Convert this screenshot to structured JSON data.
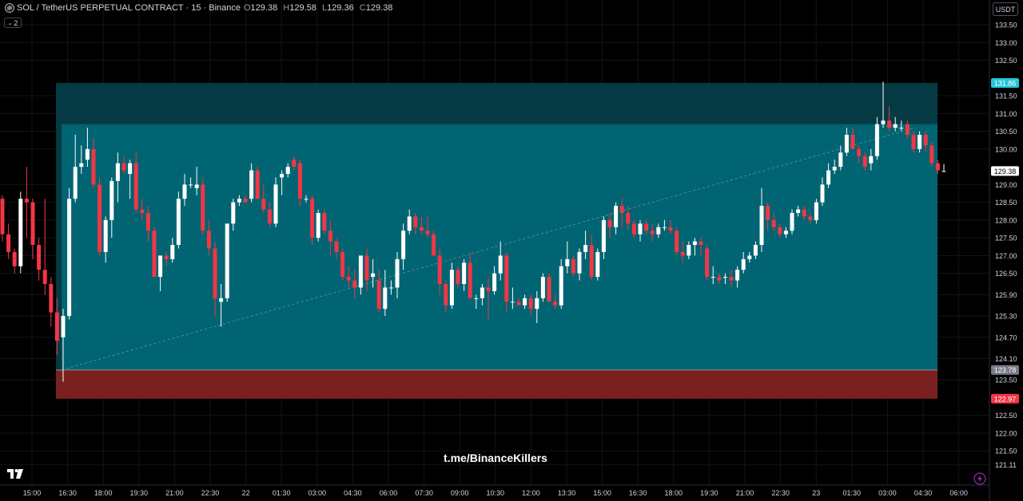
{
  "header": {
    "symbol": "SOL / TetherUS PERPETUAL CONTRACT · 15 · Binance",
    "o_label": "O",
    "o_value": "129.38",
    "h_label": "H",
    "h_value": "129.58",
    "l_label": "L",
    "l_value": "129.36",
    "c_label": "C",
    "c_value": "129.38",
    "indicator_count": "2"
  },
  "currency": "USDT",
  "watermark": "t.me/BinanceKillers",
  "colors": {
    "background": "#000000",
    "up": "#ffffff",
    "down": "#f23645",
    "target_zone": "#006472",
    "upper_zone": "#053a44",
    "stop_zone": "#7a211f",
    "grid": "#141414"
  },
  "icons": [
    "binance-coin-icon",
    "chevron-down-icon",
    "tradingview-logo-icon",
    "lightning-icon"
  ],
  "chart_data": {
    "type": "candlestick",
    "title": "SOL / TetherUS PERPETUAL CONTRACT · 15 · Binance",
    "interval": "15m",
    "ylim": [
      121.11,
      134.0
    ],
    "y_ticks": [
      "133.50",
      "133.00",
      "132.50",
      "131.50",
      "131.00",
      "130.50",
      "130.00",
      "129.00",
      "128.50",
      "128.00",
      "127.50",
      "127.00",
      "126.50",
      "125.90",
      "125.30",
      "124.70",
      "124.10",
      "123.50",
      "122.50",
      "122.00",
      "121.50",
      "121.11"
    ],
    "x_ticks": [
      "15:00",
      "16:30",
      "18:00",
      "19:30",
      "21:00",
      "22:30",
      "22",
      "01:30",
      "03:00",
      "04:30",
      "06:00",
      "07:30",
      "09:00",
      "10:30",
      "12:00",
      "13:30",
      "15:00",
      "16:30",
      "18:00",
      "19:30",
      "21:00",
      "22:30",
      "23",
      "01:30",
      "03:00",
      "04:30",
      "06:00"
    ],
    "price_labels": [
      {
        "value": "131.86",
        "color": "#26c6da"
      },
      {
        "value": "129.38",
        "color": "#ffffff"
      },
      {
        "value": "123.78",
        "color": "#787b86"
      },
      {
        "value": "122.97",
        "color": "#f23645"
      }
    ],
    "position_tool": {
      "type": "long",
      "entry": 123.78,
      "target": 131.86,
      "stop": 122.97,
      "inner_top": 130.7
    },
    "candles": [
      [
        128.6,
        128.7,
        127.4,
        127.6
      ],
      [
        127.6,
        127.9,
        126.9,
        127.1
      ],
      [
        127.1,
        127.2,
        126.5,
        126.7
      ],
      [
        126.7,
        128.8,
        126.5,
        128.6
      ],
      [
        128.6,
        129.5,
        127.5,
        128.5
      ],
      [
        128.5,
        128.6,
        126.9,
        127.3
      ],
      [
        127.3,
        127.5,
        126.3,
        126.6
      ],
      [
        126.6,
        128.6,
        125.9,
        126.2
      ],
      [
        126.2,
        126.4,
        125.0,
        125.4
      ],
      [
        125.4,
        125.8,
        124.2,
        124.6
      ],
      [
        124.7,
        125.5,
        123.45,
        125.3
      ],
      [
        125.3,
        128.9,
        125.2,
        128.6
      ],
      [
        128.6,
        130.4,
        128.5,
        129.5
      ],
      [
        129.5,
        130.1,
        129.3,
        129.6
      ],
      [
        129.7,
        130.6,
        129.5,
        130.0
      ],
      [
        130.0,
        130.3,
        128.9,
        129.0
      ],
      [
        129.0,
        129.2,
        127.0,
        127.1
      ],
      [
        127.1,
        128.1,
        126.8,
        128.0
      ],
      [
        128.0,
        129.2,
        127.5,
        129.1
      ],
      [
        129.1,
        129.9,
        128.5,
        129.6
      ],
      [
        129.6,
        129.8,
        129.3,
        129.4
      ],
      [
        129.3,
        129.7,
        128.6,
        129.6
      ],
      [
        129.6,
        129.9,
        128.2,
        128.3
      ],
      [
        128.3,
        128.6,
        128.0,
        128.2
      ],
      [
        128.2,
        128.4,
        127.4,
        127.7
      ],
      [
        127.7,
        127.8,
        126.5,
        126.4
      ],
      [
        126.4,
        127.0,
        126.0,
        127.0
      ],
      [
        127.0,
        127.1,
        126.7,
        126.9
      ],
      [
        126.9,
        127.5,
        126.8,
        127.3
      ],
      [
        127.3,
        128.8,
        127.2,
        128.6
      ],
      [
        128.6,
        129.3,
        128.4,
        129.0
      ],
      [
        129.0,
        129.2,
        128.9,
        129.0
      ],
      [
        128.9,
        129.5,
        128.7,
        129.0
      ],
      [
        129.0,
        129.2,
        127.6,
        127.7
      ],
      [
        127.7,
        128.0,
        127.0,
        127.2
      ],
      [
        127.2,
        127.4,
        125.3,
        125.8
      ],
      [
        125.7,
        126.2,
        125.0,
        125.8
      ],
      [
        125.8,
        127.9,
        125.7,
        127.9
      ],
      [
        127.9,
        128.6,
        127.7,
        128.5
      ],
      [
        128.5,
        128.7,
        128.4,
        128.6
      ],
      [
        128.6,
        128.7,
        128.5,
        128.5
      ],
      [
        128.6,
        129.6,
        128.5,
        129.4
      ],
      [
        129.4,
        129.5,
        128.6,
        128.6
      ],
      [
        128.6,
        129.0,
        128.2,
        128.3
      ],
      [
        128.3,
        128.5,
        127.8,
        127.9
      ],
      [
        127.9,
        129.2,
        127.8,
        129.0
      ],
      [
        129.2,
        129.4,
        128.7,
        129.3
      ],
      [
        129.3,
        129.6,
        129.2,
        129.5
      ],
      [
        129.7,
        129.8,
        129.4,
        129.5
      ],
      [
        129.6,
        129.7,
        128.4,
        128.6
      ],
      [
        128.6,
        128.7,
        128.5,
        128.6
      ],
      [
        128.6,
        128.7,
        127.3,
        127.5
      ],
      [
        127.5,
        128.3,
        127.4,
        128.2
      ],
      [
        128.2,
        128.3,
        127.6,
        127.7
      ],
      [
        127.7,
        128.0,
        127.0,
        127.4
      ],
      [
        127.4,
        127.5,
        126.9,
        127.1
      ],
      [
        127.1,
        127.2,
        126.3,
        126.4
      ],
      [
        126.4,
        126.7,
        126.1,
        126.3
      ],
      [
        126.3,
        126.6,
        125.8,
        126.1
      ],
      [
        126.1,
        127.0,
        125.9,
        127.0
      ],
      [
        127.0,
        127.2,
        126.0,
        126.3
      ],
      [
        126.4,
        126.9,
        126.1,
        126.5
      ],
      [
        126.3,
        126.6,
        125.4,
        125.5
      ],
      [
        125.5,
        126.6,
        125.3,
        126.1
      ],
      [
        126.1,
        126.3,
        125.9,
        126.1
      ],
      [
        126.1,
        127.1,
        125.8,
        126.9
      ],
      [
        126.9,
        127.9,
        126.6,
        127.7
      ],
      [
        127.7,
        128.3,
        127.6,
        128.1
      ],
      [
        128.1,
        128.2,
        127.6,
        127.8
      ],
      [
        127.8,
        128.1,
        127.6,
        127.7
      ],
      [
        127.7,
        128.1,
        127.5,
        127.6
      ],
      [
        127.6,
        127.7,
        127.0,
        127.0
      ],
      [
        127.0,
        127.2,
        125.9,
        126.2
      ],
      [
        126.2,
        126.3,
        125.4,
        125.6
      ],
      [
        125.6,
        126.8,
        125.5,
        126.6
      ],
      [
        126.6,
        126.7,
        126.1,
        126.2
      ],
      [
        126.2,
        126.9,
        126.0,
        126.8
      ],
      [
        126.8,
        127.1,
        125.8,
        125.8
      ],
      [
        125.8,
        125.9,
        125.5,
        125.8
      ],
      [
        125.8,
        126.2,
        125.6,
        126.1
      ],
      [
        126.1,
        126.4,
        125.2,
        126.0
      ],
      [
        126.0,
        126.7,
        125.9,
        126.5
      ],
      [
        126.5,
        127.4,
        126.3,
        127.0
      ],
      [
        127.0,
        127.1,
        125.4,
        125.7
      ],
      [
        125.7,
        126.1,
        125.5,
        125.7
      ],
      [
        125.7,
        125.8,
        125.6,
        125.6
      ],
      [
        125.6,
        125.9,
        125.5,
        125.8
      ],
      [
        125.8,
        125.9,
        125.3,
        125.5
      ],
      [
        125.5,
        126.0,
        125.1,
        125.8
      ],
      [
        125.8,
        126.5,
        125.7,
        126.4
      ],
      [
        126.4,
        126.5,
        125.7,
        125.7
      ],
      [
        125.7,
        125.9,
        125.5,
        125.6
      ],
      [
        125.6,
        126.9,
        125.5,
        126.7
      ],
      [
        126.7,
        127.4,
        126.5,
        126.9
      ],
      [
        126.9,
        127.0,
        126.4,
        126.5
      ],
      [
        126.5,
        127.2,
        126.3,
        127.1
      ],
      [
        127.1,
        127.7,
        126.9,
        127.3
      ],
      [
        127.3,
        127.6,
        126.3,
        126.4
      ],
      [
        126.4,
        127.2,
        126.3,
        127.1
      ],
      [
        127.1,
        128.1,
        126.9,
        128.0
      ],
      [
        128.0,
        128.2,
        127.5,
        127.8
      ],
      [
        127.8,
        128.5,
        127.6,
        128.4
      ],
      [
        128.4,
        128.6,
        127.8,
        128.2
      ],
      [
        128.2,
        128.4,
        127.7,
        127.9
      ],
      [
        127.9,
        128.0,
        127.5,
        127.6
      ],
      [
        127.6,
        128.0,
        127.4,
        127.9
      ],
      [
        127.9,
        128.0,
        127.6,
        127.7
      ],
      [
        127.7,
        127.9,
        127.4,
        127.6
      ],
      [
        127.6,
        127.9,
        127.5,
        127.8
      ],
      [
        127.8,
        128.0,
        127.7,
        127.8
      ],
      [
        127.8,
        128.0,
        127.6,
        127.7
      ],
      [
        127.7,
        127.8,
        127.0,
        127.1
      ],
      [
        127.1,
        127.4,
        126.8,
        127.0
      ],
      [
        127.0,
        127.4,
        126.9,
        127.3
      ],
      [
        127.3,
        127.5,
        127.0,
        127.4
      ],
      [
        127.4,
        127.5,
        127.0,
        127.3
      ],
      [
        127.2,
        127.3,
        126.3,
        126.4
      ],
      [
        126.4,
        126.7,
        126.2,
        126.4
      ],
      [
        126.4,
        126.5,
        126.2,
        126.3
      ],
      [
        126.4,
        126.5,
        126.2,
        126.4
      ],
      [
        126.4,
        126.6,
        126.1,
        126.3
      ],
      [
        126.3,
        126.7,
        126.1,
        126.6
      ],
      [
        126.6,
        127.1,
        126.5,
        126.9
      ],
      [
        126.9,
        127.1,
        126.8,
        127.0
      ],
      [
        127.0,
        127.4,
        126.9,
        127.3
      ],
      [
        127.3,
        128.9,
        127.1,
        128.4
      ],
      [
        128.4,
        128.5,
        127.7,
        128.0
      ],
      [
        128.0,
        128.2,
        127.7,
        127.8
      ],
      [
        127.8,
        127.9,
        127.5,
        127.6
      ],
      [
        127.6,
        127.8,
        127.5,
        127.7
      ],
      [
        127.7,
        128.3,
        127.6,
        128.2
      ],
      [
        128.2,
        128.4,
        128.1,
        128.3
      ],
      [
        128.3,
        128.4,
        128.0,
        128.1
      ],
      [
        128.1,
        128.2,
        127.9,
        128.0
      ],
      [
        128.0,
        128.6,
        127.9,
        128.5
      ],
      [
        128.5,
        129.2,
        128.4,
        129.0
      ],
      [
        129.0,
        129.6,
        128.9,
        129.4
      ],
      [
        129.4,
        129.7,
        129.3,
        129.5
      ],
      [
        129.5,
        130.1,
        129.4,
        129.9
      ],
      [
        129.9,
        130.6,
        129.8,
        130.4
      ],
      [
        130.4,
        130.6,
        130.0,
        130.0
      ],
      [
        130.0,
        130.1,
        129.6,
        129.8
      ],
      [
        129.8,
        129.9,
        129.4,
        129.5
      ],
      [
        129.6,
        130.0,
        129.4,
        129.8
      ],
      [
        129.8,
        130.9,
        129.7,
        130.7
      ],
      [
        130.7,
        131.9,
        130.6,
        130.8
      ],
      [
        130.8,
        131.2,
        130.5,
        130.6
      ],
      [
        130.6,
        130.9,
        130.5,
        130.7
      ],
      [
        130.6,
        130.8,
        130.5,
        130.6
      ],
      [
        130.7,
        130.8,
        130.3,
        130.4
      ],
      [
        130.4,
        130.5,
        129.9,
        130.0
      ],
      [
        130.0,
        130.5,
        129.9,
        130.4
      ],
      [
        130.4,
        130.5,
        129.9,
        130.1
      ],
      [
        130.1,
        130.2,
        129.5,
        129.6
      ],
      [
        129.6,
        129.7,
        129.3,
        129.4
      ],
      [
        129.38,
        129.58,
        129.36,
        129.38
      ]
    ]
  }
}
